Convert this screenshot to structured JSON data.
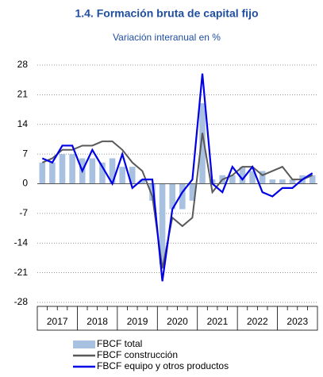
{
  "chart_data": {
    "type": "bar_line",
    "title": "1.4. Formación bruta de capital fijo",
    "subtitle": "Variación interanual en %",
    "years": [
      "2017",
      "2018",
      "2019",
      "2020",
      "2021",
      "2022",
      "2023"
    ],
    "ylim": [
      -28,
      28
    ],
    "yticks": [
      28,
      21,
      14,
      7,
      0,
      -7,
      -14,
      -21,
      -28
    ],
    "grid": true,
    "series": [
      {
        "name": "FBCF total",
        "kind": "bar",
        "color": "#a9c1e0",
        "values": [
          5,
          5,
          7,
          7,
          6,
          6,
          5,
          6,
          4,
          4,
          1,
          -4,
          -19,
          -6,
          -6,
          -4,
          19,
          1,
          2,
          2,
          4,
          3,
          3,
          1,
          1,
          1,
          2,
          2
        ]
      },
      {
        "name": "FBCF construcción",
        "kind": "line",
        "color": "#595959",
        "values": [
          5,
          6,
          8,
          8,
          9,
          9,
          10,
          10,
          8,
          5,
          3,
          -3,
          -20,
          -8,
          -10,
          -8,
          12,
          -2,
          1,
          2,
          4,
          4,
          2,
          3,
          4,
          1,
          1,
          2
        ]
      },
      {
        "name": "FBCF equipo y otros productos",
        "kind": "line",
        "color": "#0000e6",
        "values": [
          6,
          5,
          9,
          9,
          3,
          8,
          4,
          0,
          7,
          -1,
          1,
          1,
          -23,
          -6,
          -2,
          1,
          26,
          0,
          -2,
          4,
          1,
          4,
          -2,
          -3,
          -1,
          -1,
          1,
          2.5
        ]
      }
    ]
  }
}
